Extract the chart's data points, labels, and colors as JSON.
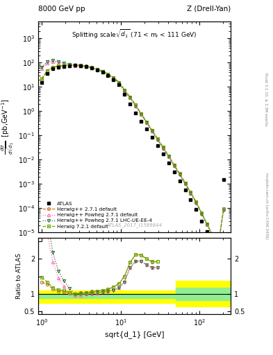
{
  "title_left": "8000 GeV pp",
  "title_right": "Z (Drell-Yan)",
  "panel_title": "Splitting scale $\\sqrt{d_1}$ (71 < m$_l$ < 111 GeV)",
  "ylabel_main": "d$\\sigma$/dsqrt(d$_1$)  [pb,GeV$^{-1}$]",
  "ylabel_ratio": "Ratio to ATLAS",
  "xlabel": "sqrt{d_1} [GeV]",
  "watermark": "ATLAS_2017_I1589844",
  "right_label": "Rivet 3.1.10, ≥ 3.3M events",
  "right_label2": "mcplots.cern.ch [arXiv:1306.3436]",
  "atlas_x": [
    1.0,
    1.17,
    1.38,
    1.62,
    1.91,
    2.24,
    2.63,
    3.09,
    3.63,
    4.27,
    5.01,
    5.89,
    6.92,
    8.13,
    9.55,
    11.2,
    13.2,
    15.5,
    18.2,
    21.4,
    25.1,
    29.5,
    34.7,
    40.7,
    47.9,
    56.2,
    66.1,
    77.6,
    91.2,
    107.0,
    125.0,
    147.0,
    173.0,
    203.0
  ],
  "atlas_y": [
    15.0,
    35.0,
    55.0,
    65.0,
    70.0,
    75.0,
    78.0,
    75.0,
    68.0,
    60.0,
    50.0,
    40.0,
    30.0,
    20.0,
    12.0,
    5.0,
    2.0,
    0.85,
    0.38,
    0.18,
    0.085,
    0.038,
    0.017,
    0.0075,
    0.0032,
    0.0013,
    0.00055,
    0.00022,
    9e-05,
    3e-05,
    1.1e-05,
    3.5e-06,
    1.2e-06,
    0.0015
  ],
  "hw271_x": [
    1.0,
    1.17,
    1.38,
    1.62,
    1.91,
    2.24,
    2.63,
    3.09,
    3.63,
    4.27,
    5.01,
    5.89,
    6.92,
    8.13,
    9.55,
    11.2,
    13.2,
    15.5,
    18.2,
    21.4,
    25.1,
    29.5,
    34.7,
    40.7,
    47.9,
    56.2,
    66.1,
    77.6,
    91.2,
    107.0,
    125.0,
    147.0,
    173.0,
    203.0
  ],
  "hw271_y": [
    20.0,
    45.0,
    63.0,
    70.0,
    74.0,
    76.0,
    78.0,
    77.0,
    71.0,
    64.0,
    54.0,
    44.0,
    34.0,
    24.0,
    15.5,
    7.5,
    3.8,
    1.8,
    0.8,
    0.36,
    0.162,
    0.073,
    0.032,
    0.0141,
    0.006,
    0.0026,
    0.0011,
    0.00044,
    0.000178,
    6.3e-05,
    2.25e-05,
    7.8e-06,
    2.7e-06,
    9.3e-05
  ],
  "hw271pow_x": [
    1.0,
    1.17,
    1.38,
    1.62,
    1.91,
    2.24,
    2.63,
    3.09,
    3.63,
    4.27,
    5.01,
    5.89,
    6.92,
    8.13,
    9.55,
    11.2,
    13.2,
    15.5,
    18.2,
    21.4,
    25.1,
    29.5,
    34.7,
    40.7,
    47.9,
    56.2,
    66.1,
    77.6,
    91.2,
    107.0,
    125.0,
    147.0,
    173.0,
    203.0
  ],
  "hw271pow_y": [
    55.0,
    95.0,
    105.0,
    95.0,
    85.0,
    78.0,
    74.0,
    72.0,
    67.0,
    60.0,
    51.0,
    42.0,
    32.0,
    22.5,
    14.0,
    6.8,
    3.5,
    1.65,
    0.74,
    0.33,
    0.149,
    0.067,
    0.03,
    0.0133,
    0.0057,
    0.0025,
    0.00104,
    0.00042,
    0.00017,
    6e-05,
    2.15e-05,
    7.4e-06,
    2.55e-06,
    8.9e-05
  ],
  "hw271powlhc_x": [
    1.0,
    1.17,
    1.38,
    1.62,
    1.91,
    2.24,
    2.63,
    3.09,
    3.63,
    4.27,
    5.01,
    5.89,
    6.92,
    8.13,
    9.55,
    11.2,
    13.2,
    15.5,
    18.2,
    21.4,
    25.1,
    29.5,
    34.7,
    40.7,
    47.9,
    56.2,
    66.1,
    77.6,
    91.2,
    107.0,
    125.0,
    147.0,
    173.0,
    203.0
  ],
  "hw271powlhc_y": [
    65.0,
    110.0,
    120.0,
    108.0,
    96.0,
    86.0,
    78.0,
    74.0,
    68.0,
    61.0,
    52.0,
    42.0,
    32.0,
    22.0,
    14.0,
    6.7,
    3.5,
    1.63,
    0.73,
    0.33,
    0.148,
    0.066,
    0.0295,
    0.0131,
    0.0055,
    0.00242,
    0.00102,
    0.000408,
    0.000165,
    5.8e-05,
    2.1e-05,
    7.2e-06,
    2.5e-06,
    8.6e-05
  ],
  "hw721_x": [
    1.0,
    1.17,
    1.38,
    1.62,
    1.91,
    2.24,
    2.63,
    3.09,
    3.63,
    4.27,
    5.01,
    5.89,
    6.92,
    8.13,
    9.55,
    11.2,
    13.2,
    15.5,
    18.2,
    21.4,
    25.1,
    29.5,
    34.7,
    40.7,
    47.9,
    56.2,
    66.1,
    77.6,
    91.2,
    107.0,
    125.0,
    147.0,
    173.0,
    203.0
  ],
  "hw721_y": [
    22.0,
    47.0,
    65.0,
    73.0,
    76.0,
    78.0,
    78.0,
    76.0,
    70.0,
    63.0,
    54.0,
    44.0,
    34.0,
    24.0,
    15.5,
    7.5,
    3.8,
    1.8,
    0.8,
    0.36,
    0.163,
    0.073,
    0.033,
    0.0144,
    0.0062,
    0.0027,
    0.00112,
    0.000452,
    0.000182,
    6.5e-05,
    2.3e-05,
    7.9e-06,
    2.7e-06,
    9.5e-05
  ],
  "ratio_hw271_x": [
    1.0,
    1.17,
    1.38,
    1.62,
    1.91,
    2.24,
    2.63,
    3.09,
    3.63,
    4.27,
    5.01,
    5.89,
    6.92,
    8.13,
    9.55,
    11.2,
    13.2,
    15.5,
    18.2,
    21.4,
    25.1,
    29.5
  ],
  "ratio_hw271_y": [
    1.33,
    1.28,
    1.14,
    1.08,
    1.06,
    1.01,
    1.0,
    1.03,
    1.04,
    1.07,
    1.08,
    1.1,
    1.13,
    1.2,
    1.29,
    1.5,
    1.9,
    2.12,
    2.11,
    2.0,
    1.91,
    1.92
  ],
  "ratio_hw271pow_x": [
    1.0,
    1.17,
    1.38,
    1.62,
    1.91,
    2.24,
    2.63,
    3.09,
    3.63,
    4.27,
    5.01,
    5.89,
    6.92,
    8.13,
    9.55,
    11.2,
    13.2,
    15.5,
    18.2,
    21.4,
    25.1,
    29.5
  ],
  "ratio_hw271pow_y": [
    3.67,
    2.71,
    1.91,
    1.46,
    1.21,
    1.04,
    0.95,
    0.96,
    0.99,
    1.0,
    1.02,
    1.05,
    1.07,
    1.13,
    1.17,
    1.36,
    1.75,
    1.94,
    1.95,
    1.83,
    1.75,
    1.76
  ],
  "ratio_hw271powlhc_x": [
    1.0,
    1.17,
    1.38,
    1.62,
    1.91,
    2.24,
    2.63,
    3.09,
    3.63,
    4.27,
    5.01,
    5.89,
    6.92,
    8.13,
    9.55,
    11.2,
    13.2,
    15.5,
    18.2,
    21.4,
    25.1,
    29.5
  ],
  "ratio_hw271powlhc_y": [
    4.33,
    3.14,
    2.18,
    1.66,
    1.37,
    1.15,
    1.0,
    0.99,
    1.0,
    1.02,
    1.04,
    1.05,
    1.07,
    1.1,
    1.17,
    1.34,
    1.75,
    1.92,
    1.92,
    1.83,
    1.74,
    1.74
  ],
  "ratio_hw721_x": [
    1.0,
    1.17,
    1.38,
    1.62,
    1.91,
    2.24,
    2.63,
    3.09,
    3.63,
    4.27,
    5.01,
    5.89,
    6.92,
    8.13,
    9.55,
    11.2,
    13.2,
    15.5,
    18.2,
    21.4,
    25.1,
    29.5
  ],
  "ratio_hw721_y": [
    1.47,
    1.34,
    1.18,
    1.12,
    1.09,
    1.04,
    1.0,
    1.01,
    1.03,
    1.05,
    1.08,
    1.1,
    1.13,
    1.2,
    1.29,
    1.5,
    1.9,
    2.12,
    2.11,
    2.0,
    1.92,
    1.92
  ],
  "color_hw271": "#cc7722",
  "color_hw271pow": "#ff69b4",
  "color_hw271powlhc": "#2d6a2d",
  "color_hw721": "#66aa00",
  "ylim_main": [
    1e-05,
    5000
  ],
  "xlim": [
    0.9,
    250
  ],
  "ylim_ratio": [
    0.42,
    2.6
  ],
  "ratio_yticks": [
    0.5,
    1.0,
    1.5,
    2.0,
    2.5
  ],
  "ratio_ytick_labels": [
    "0.5",
    "1",
    "",
    "2",
    ""
  ]
}
